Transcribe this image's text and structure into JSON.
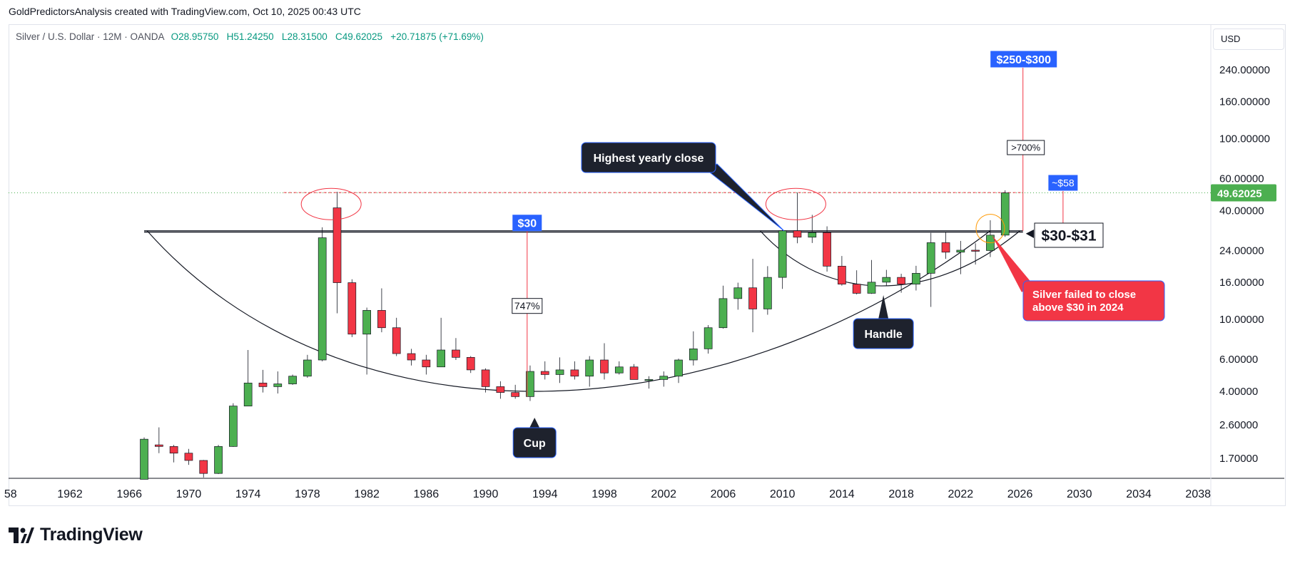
{
  "header": {
    "attribution": "GoldPredictorsAnalysis created with TradingView.com, Oct 10, 2025 00:43 UTC"
  },
  "symbol": {
    "name": "Silver / U.S. Dollar · 12M · OANDA",
    "ohlc": "O28.95750   H51.24250   L28.31500   C49.62025   +20.71875 (+71.69%)"
  },
  "currency": "USD",
  "logo": {
    "text": "TradingView",
    "icon": "tradingview-logo-icon"
  },
  "colors": {
    "up": "#4caf50",
    "down": "#f23645",
    "axis_text": "#131722",
    "price_badge": "#4caf50",
    "blue_label": "#2962ff"
  },
  "chart_data": {
    "type": "candlestick",
    "scale": "log",
    "y_ticks": [
      "240.00000",
      "160.00000",
      "100.00000",
      "60.00000",
      "40.00000",
      "24.00000",
      "16.00000",
      "10.00000",
      "6.00000",
      "4.00000",
      "2.60000",
      "1.70000"
    ],
    "x_ticks": [
      "58",
      "1962",
      "1966",
      "1970",
      "1974",
      "1978",
      "1982",
      "1986",
      "1990",
      "1994",
      "1998",
      "2002",
      "2006",
      "2010",
      "2014",
      "2018",
      "2022",
      "2026",
      "2030",
      "2034",
      "2038"
    ],
    "last_price": "49.62025",
    "candles": [
      {
        "year": 1967,
        "o": 1.29,
        "h": 2.2,
        "l": 1.29,
        "c": 2.15
      },
      {
        "year": 1968,
        "o": 2.0,
        "h": 2.5,
        "l": 1.8,
        "c": 1.96
      },
      {
        "year": 1969,
        "o": 1.96,
        "h": 2.0,
        "l": 1.6,
        "c": 1.8
      },
      {
        "year": 1970,
        "o": 1.8,
        "h": 1.9,
        "l": 1.55,
        "c": 1.64
      },
      {
        "year": 1971,
        "o": 1.64,
        "h": 1.65,
        "l": 1.32,
        "c": 1.39
      },
      {
        "year": 1972,
        "o": 1.39,
        "h": 2.0,
        "l": 1.38,
        "c": 1.96
      },
      {
        "year": 1973,
        "o": 1.96,
        "h": 3.4,
        "l": 1.95,
        "c": 3.28
      },
      {
        "year": 1974,
        "o": 3.28,
        "h": 6.7,
        "l": 3.27,
        "c": 4.4
      },
      {
        "year": 1975,
        "o": 4.4,
        "h": 5.2,
        "l": 3.9,
        "c": 4.2
      },
      {
        "year": 1976,
        "o": 4.2,
        "h": 5.1,
        "l": 3.85,
        "c": 4.35
      },
      {
        "year": 1977,
        "o": 4.35,
        "h": 4.9,
        "l": 4.3,
        "c": 4.8
      },
      {
        "year": 1978,
        "o": 4.8,
        "h": 6.3,
        "l": 4.7,
        "c": 5.9
      },
      {
        "year": 1979,
        "o": 5.9,
        "h": 32.0,
        "l": 5.8,
        "c": 28.0
      },
      {
        "year": 1980,
        "o": 41.0,
        "h": 50.3,
        "l": 10.7,
        "c": 15.8
      },
      {
        "year": 1981,
        "o": 15.8,
        "h": 16.5,
        "l": 7.9,
        "c": 8.2
      },
      {
        "year": 1982,
        "o": 8.2,
        "h": 11.5,
        "l": 4.9,
        "c": 11.1
      },
      {
        "year": 1983,
        "o": 11.1,
        "h": 14.7,
        "l": 8.4,
        "c": 8.9
      },
      {
        "year": 1984,
        "o": 8.9,
        "h": 10.1,
        "l": 6.2,
        "c": 6.4
      },
      {
        "year": 1985,
        "o": 6.4,
        "h": 6.8,
        "l": 5.5,
        "c": 5.9
      },
      {
        "year": 1986,
        "o": 5.9,
        "h": 6.3,
        "l": 4.9,
        "c": 5.4
      },
      {
        "year": 1987,
        "o": 5.4,
        "h": 10.1,
        "l": 5.4,
        "c": 6.7
      },
      {
        "year": 1988,
        "o": 6.7,
        "h": 7.8,
        "l": 5.9,
        "c": 6.1
      },
      {
        "year": 1989,
        "o": 6.1,
        "h": 6.2,
        "l": 5.0,
        "c": 5.2
      },
      {
        "year": 1990,
        "o": 5.2,
        "h": 5.3,
        "l": 3.9,
        "c": 4.2
      },
      {
        "year": 1991,
        "o": 4.2,
        "h": 4.5,
        "l": 3.6,
        "c": 3.9
      },
      {
        "year": 1992,
        "o": 3.9,
        "h": 4.3,
        "l": 3.6,
        "c": 3.7
      },
      {
        "year": 1993,
        "o": 3.7,
        "h": 5.5,
        "l": 3.5,
        "c": 5.1
      },
      {
        "year": 1994,
        "o": 5.1,
        "h": 5.8,
        "l": 4.6,
        "c": 4.9
      },
      {
        "year": 1995,
        "o": 4.9,
        "h": 6.1,
        "l": 4.4,
        "c": 5.2
      },
      {
        "year": 1996,
        "o": 5.2,
        "h": 5.8,
        "l": 4.6,
        "c": 4.8
      },
      {
        "year": 1997,
        "o": 4.8,
        "h": 6.2,
        "l": 4.2,
        "c": 5.9
      },
      {
        "year": 1998,
        "o": 5.9,
        "h": 7.3,
        "l": 4.6,
        "c": 5.0
      },
      {
        "year": 1999,
        "o": 5.0,
        "h": 5.8,
        "l": 4.9,
        "c": 5.4
      },
      {
        "year": 2000,
        "o": 5.4,
        "h": 5.6,
        "l": 4.6,
        "c": 4.6
      },
      {
        "year": 2001,
        "o": 4.6,
        "h": 4.8,
        "l": 4.1,
        "c": 4.6
      },
      {
        "year": 2002,
        "o": 4.6,
        "h": 5.1,
        "l": 4.2,
        "c": 4.8
      },
      {
        "year": 2003,
        "o": 4.8,
        "h": 6.0,
        "l": 4.4,
        "c": 5.9
      },
      {
        "year": 2004,
        "o": 5.9,
        "h": 8.5,
        "l": 5.5,
        "c": 6.8
      },
      {
        "year": 2005,
        "o": 6.8,
        "h": 9.2,
        "l": 6.4,
        "c": 8.9
      },
      {
        "year": 2006,
        "o": 8.9,
        "h": 15.2,
        "l": 8.8,
        "c": 12.9
      },
      {
        "year": 2007,
        "o": 12.9,
        "h": 15.8,
        "l": 11.2,
        "c": 14.8
      },
      {
        "year": 2008,
        "o": 14.8,
        "h": 21.4,
        "l": 8.4,
        "c": 11.3
      },
      {
        "year": 2009,
        "o": 11.3,
        "h": 19.5,
        "l": 10.5,
        "c": 16.9
      },
      {
        "year": 2010,
        "o": 16.9,
        "h": 31.0,
        "l": 14.6,
        "c": 30.6
      },
      {
        "year": 2011,
        "o": 30.6,
        "h": 49.8,
        "l": 26.1,
        "c": 28.2
      },
      {
        "year": 2012,
        "o": 28.2,
        "h": 37.5,
        "l": 26.2,
        "c": 29.9
      },
      {
        "year": 2013,
        "o": 29.9,
        "h": 32.4,
        "l": 18.2,
        "c": 19.5
      },
      {
        "year": 2014,
        "o": 19.5,
        "h": 22.2,
        "l": 15.2,
        "c": 15.5
      },
      {
        "year": 2015,
        "o": 15.5,
        "h": 18.5,
        "l": 13.6,
        "c": 13.8
      },
      {
        "year": 2016,
        "o": 13.8,
        "h": 21.1,
        "l": 13.7,
        "c": 15.9
      },
      {
        "year": 2017,
        "o": 15.9,
        "h": 18.6,
        "l": 15.2,
        "c": 16.9
      },
      {
        "year": 2018,
        "o": 16.9,
        "h": 17.7,
        "l": 13.9,
        "c": 15.5
      },
      {
        "year": 2019,
        "o": 15.5,
        "h": 19.6,
        "l": 14.3,
        "c": 17.8
      },
      {
        "year": 2020,
        "o": 17.8,
        "h": 29.8,
        "l": 11.6,
        "c": 26.3
      },
      {
        "year": 2021,
        "o": 26.3,
        "h": 30.1,
        "l": 21.4,
        "c": 23.3
      },
      {
        "year": 2022,
        "o": 23.3,
        "h": 26.9,
        "l": 17.6,
        "c": 23.9
      },
      {
        "year": 2023,
        "o": 23.9,
        "h": 26.1,
        "l": 19.9,
        "c": 23.8
      },
      {
        "year": 2024,
        "o": 23.8,
        "h": 35.0,
        "l": 21.9,
        "c": 28.96
      },
      {
        "year": 2025,
        "o": 28.96,
        "h": 51.24,
        "l": 28.32,
        "c": 49.62
      }
    ],
    "annotations": {
      "label_30": "$30",
      "label_747": "747%",
      "label_cup": "Cup",
      "label_highest": "Highest yearly close",
      "label_handle": "Handle",
      "label_target": "$250-$300",
      "label_700": ">700%",
      "label_58": "~$58",
      "label_3031": "$30-$31",
      "label_failed_1": "Silver failed to close",
      "label_failed_2": "above $30 in 2024"
    }
  }
}
